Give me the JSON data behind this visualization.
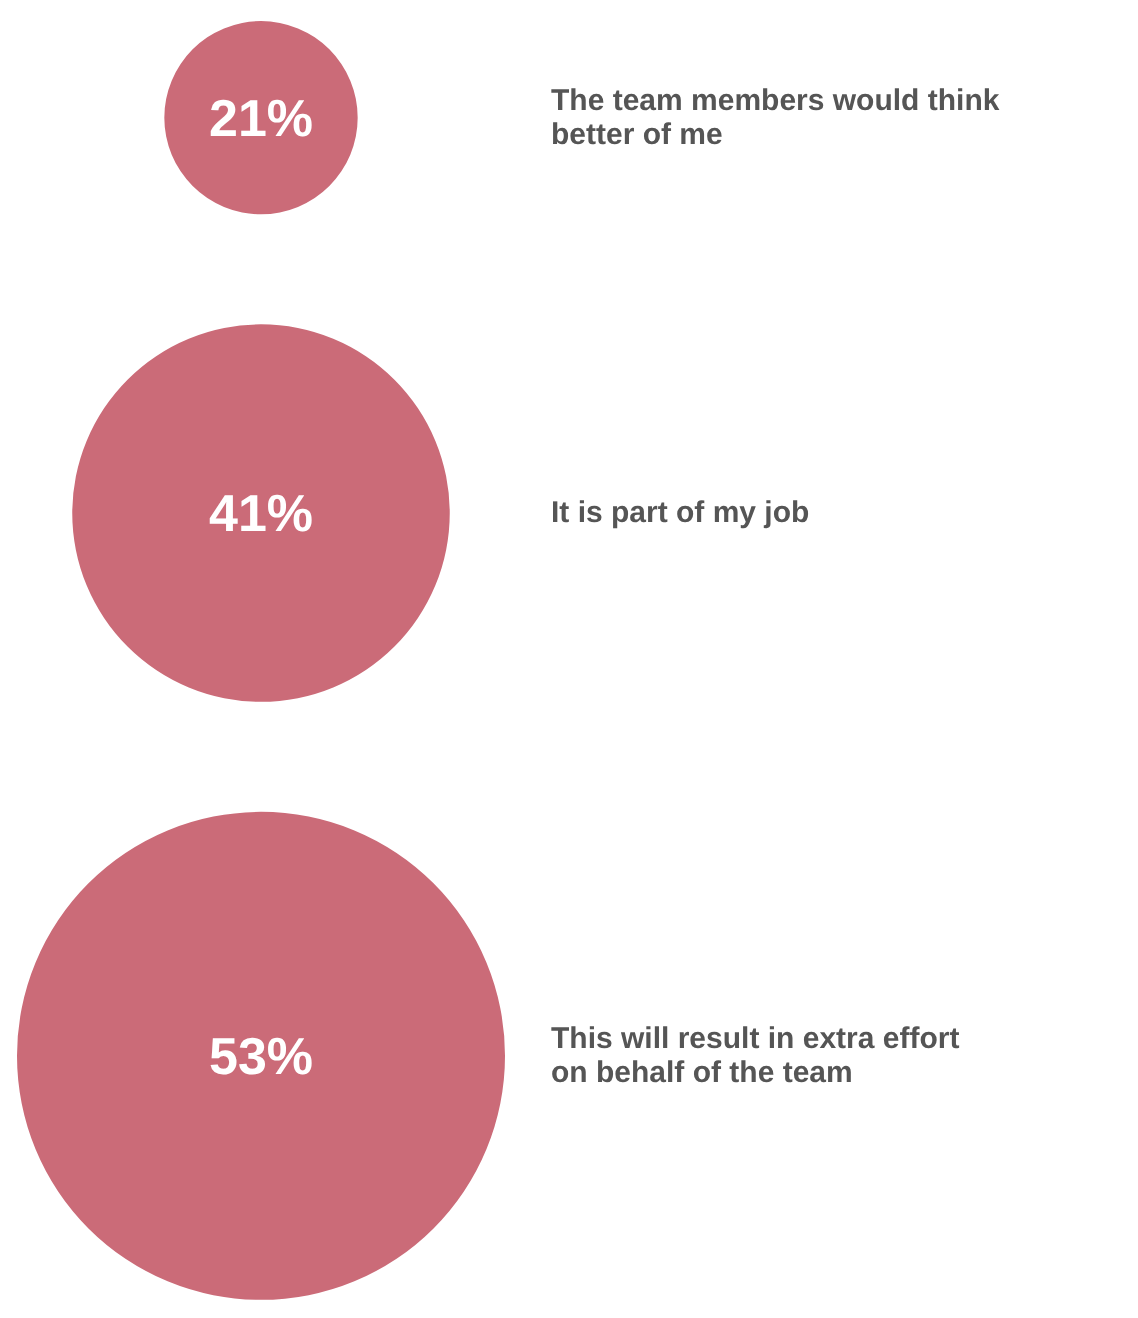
{
  "chart_data": {
    "type": "other",
    "categories": [
      "The team members would think better of me",
      "It is part of my job",
      "This will result in extra effort on behalf of the team"
    ],
    "values": [
      21,
      41,
      53
    ],
    "colors": [
      "#cb6b78",
      "#cb6b78",
      "#cb6b78"
    ],
    "value_labels": [
      "21%",
      "41%",
      "53%"
    ]
  }
}
